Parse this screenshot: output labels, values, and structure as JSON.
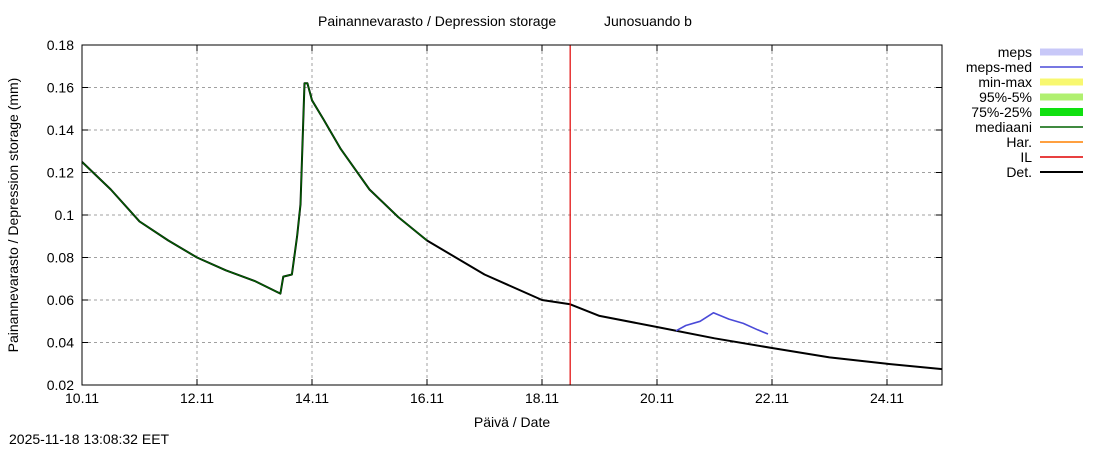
{
  "header": {
    "title": "Painannevarasto / Depression storage",
    "station": "Junosuando b"
  },
  "footer": {
    "timestamp": "2025-11-18 13:08:32 EET"
  },
  "legend": [
    {
      "label": "meps",
      "color": "#c8c8f8",
      "style": "band"
    },
    {
      "label": "meps-med",
      "color": "#4a4ad8",
      "style": "line"
    },
    {
      "label": "min-max",
      "color": "#f8f870",
      "style": "band"
    },
    {
      "label": "95%-5%",
      "color": "#b0f070",
      "style": "band"
    },
    {
      "label": "75%-25%",
      "color": "#10e010",
      "style": "band"
    },
    {
      "label": "mediaani",
      "color": "#006400",
      "style": "line"
    },
    {
      "label": "Har.",
      "color": "#ff8000",
      "style": "line"
    },
    {
      "label": "IL",
      "color": "#e00000",
      "style": "line"
    },
    {
      "label": "Det.",
      "color": "#000000",
      "style": "line"
    }
  ],
  "chart_data": {
    "type": "line",
    "title": "Painannevarasto / Depression storage   Junosuando b",
    "xlabel": "Päivä / Date",
    "ylabel": "Painannevarasto / Depression storage (mm)",
    "ylim": [
      0.02,
      0.18
    ],
    "xlim_days": [
      0,
      14.96
    ],
    "x_ticks": [
      "10.11",
      "12.11",
      "14.11",
      "16.11",
      "18.11",
      "20.11",
      "22.11",
      "24.11"
    ],
    "x_tick_days": [
      0,
      2,
      4,
      6,
      8,
      10,
      12,
      14
    ],
    "y_ticks": [
      "0.02",
      "0.04",
      "0.06",
      "0.08",
      "0.1",
      "0.12",
      "0.14",
      "0.16",
      "0.18"
    ],
    "y_tick_values": [
      0.02,
      0.04,
      0.06,
      0.08,
      0.1,
      0.12,
      0.14,
      0.16,
      0.18
    ],
    "grid": true,
    "legend_position": "right-outside",
    "vertical_marker": {
      "name": "IL",
      "day": 8.49,
      "color": "#e00000"
    },
    "series": [
      {
        "name": "Det.",
        "color": "#000000",
        "x_days": [
          0,
          0.5,
          1.0,
          1.5,
          2.0,
          2.5,
          3.0,
          3.45,
          3.5,
          3.65,
          3.74,
          3.8,
          3.87,
          3.92,
          4.0,
          4.2,
          4.5,
          5.0,
          5.5,
          6.0,
          7.0,
          8.0,
          8.49,
          9.0,
          10.0,
          11.0,
          12.0,
          13.0,
          14.0,
          14.96
        ],
        "values": [
          0.125,
          0.112,
          0.097,
          0.088,
          0.08,
          0.074,
          0.069,
          0.063,
          0.071,
          0.072,
          0.09,
          0.105,
          0.162,
          0.162,
          0.154,
          0.145,
          0.131,
          0.112,
          0.099,
          0.088,
          0.072,
          0.06,
          0.058,
          0.0525,
          0.0473,
          0.042,
          0.0374,
          0.033,
          0.03,
          0.0275
        ]
      },
      {
        "name": "mediaani",
        "color": "#006400",
        "x_days": [
          0,
          0.5,
          1.0,
          1.5,
          2.0,
          2.5,
          3.0,
          3.45,
          3.5,
          3.65,
          3.74,
          3.8,
          3.87,
          3.92,
          4.0,
          4.2,
          4.5,
          5.0,
          5.5,
          6.0
        ],
        "values": [
          0.125,
          0.112,
          0.097,
          0.088,
          0.08,
          0.074,
          0.069,
          0.063,
          0.071,
          0.072,
          0.09,
          0.105,
          0.162,
          0.162,
          0.154,
          0.145,
          0.131,
          0.112,
          0.099,
          0.088
        ]
      },
      {
        "name": "meps-med",
        "color": "#4a4ad8",
        "x_days": [
          10.33,
          10.5,
          10.75,
          10.98,
          11.25,
          11.5,
          11.75,
          11.93
        ],
        "values": [
          0.0455,
          0.048,
          0.05,
          0.054,
          0.051,
          0.049,
          0.046,
          0.044
        ]
      }
    ]
  }
}
